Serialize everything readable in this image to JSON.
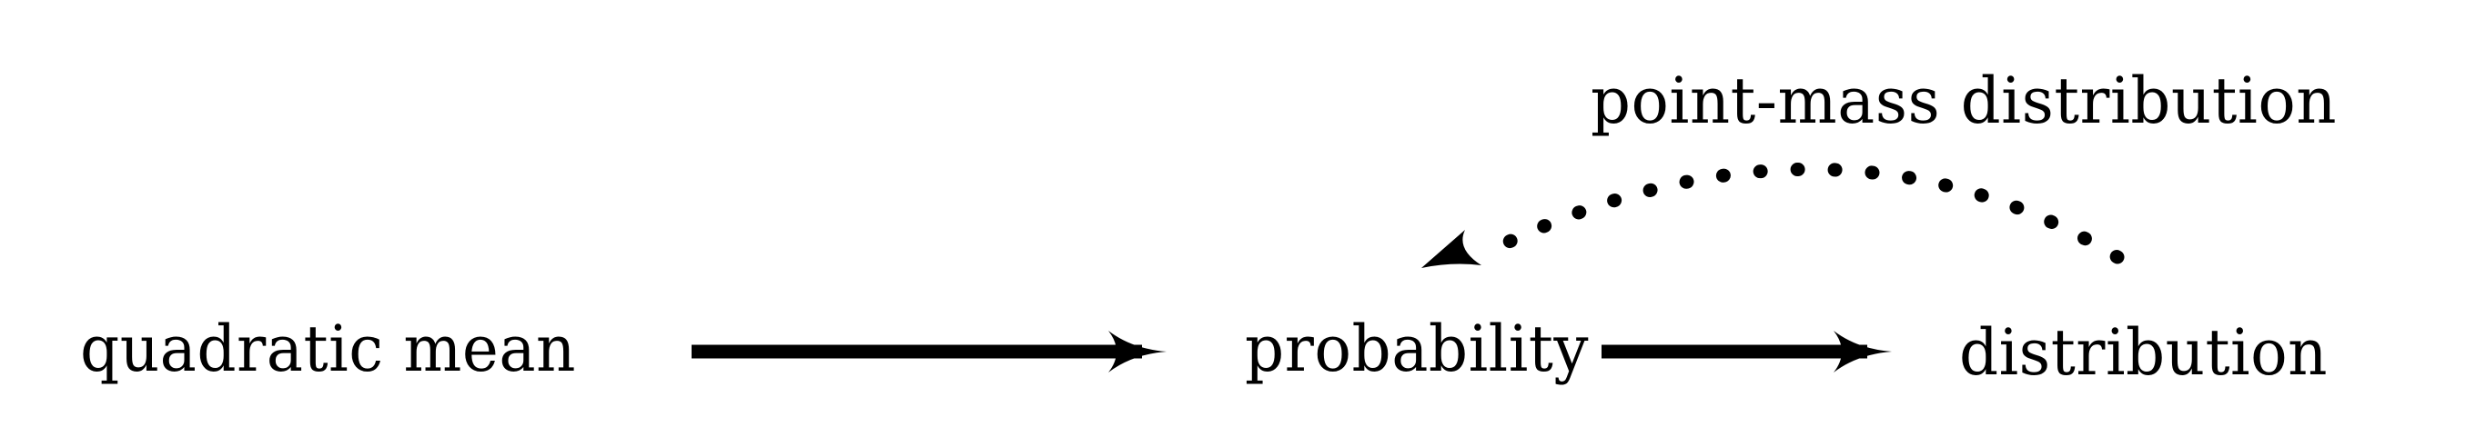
{
  "diagram": {
    "nodes": {
      "quadratic_mean": "quadratic mean",
      "probability": "probability",
      "distribution": "distribution"
    },
    "edges": [
      {
        "from": "quadratic mean",
        "to": "probability",
        "style": "solid"
      },
      {
        "from": "probability",
        "to": "distribution",
        "style": "solid"
      },
      {
        "from": "distribution",
        "to": "probability",
        "style": "dotted",
        "label": "point-mass distribution"
      }
    ],
    "edge_label": "point-mass distribution"
  },
  "colors": {
    "ink": "#000000",
    "background": "#ffffff"
  }
}
